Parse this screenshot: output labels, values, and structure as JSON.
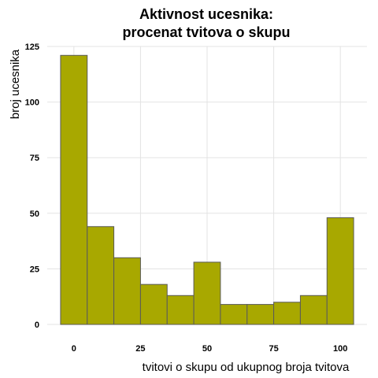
{
  "chart_data": {
    "type": "bar",
    "title_lines": [
      "Aktivnost ucesnika:",
      "procenat tvitova o skupu"
    ],
    "xlabel": "tvitovi o skupu od ukupnog broja tvitova",
    "ylabel": "broj ucesnika",
    "bin_width": 10,
    "bins": [
      {
        "start": -5,
        "end": 5,
        "count": 121
      },
      {
        "start": 5,
        "end": 15,
        "count": 44
      },
      {
        "start": 15,
        "end": 25,
        "count": 30
      },
      {
        "start": 25,
        "end": 35,
        "count": 18
      },
      {
        "start": 35,
        "end": 45,
        "count": 13
      },
      {
        "start": 45,
        "end": 55,
        "count": 28
      },
      {
        "start": 55,
        "end": 65,
        "count": 9
      },
      {
        "start": 65,
        "end": 75,
        "count": 9
      },
      {
        "start": 75,
        "end": 85,
        "count": 10
      },
      {
        "start": 85,
        "end": 95,
        "count": 13
      },
      {
        "start": 95,
        "end": 105,
        "count": 48
      }
    ],
    "xlim": [
      -10,
      110
    ],
    "ylim": [
      0,
      125
    ],
    "xticks": [
      0,
      25,
      50,
      75,
      100
    ],
    "yticks": [
      0,
      25,
      50,
      75,
      100,
      125
    ],
    "bar_color": "#a8a800",
    "bar_edge_color": "#5a5a5a",
    "grid": true,
    "legend": "none"
  }
}
